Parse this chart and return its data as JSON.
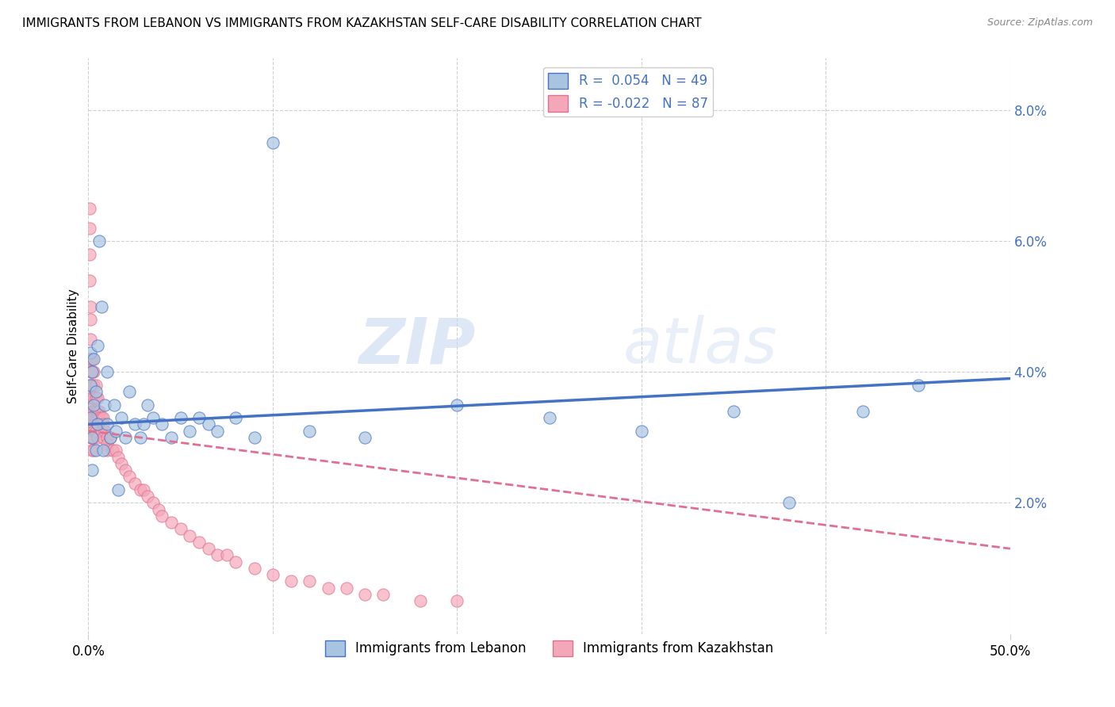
{
  "title": "IMMIGRANTS FROM LEBANON VS IMMIGRANTS FROM KAZAKHSTAN SELF-CARE DISABILITY CORRELATION CHART",
  "source": "Source: ZipAtlas.com",
  "ylabel": "Self-Care Disability",
  "xlim": [
    0.0,
    0.5
  ],
  "ylim": [
    0.0,
    0.088
  ],
  "yticks": [
    0.0,
    0.02,
    0.04,
    0.06,
    0.08
  ],
  "ytick_labels": [
    "",
    "2.0%",
    "4.0%",
    "6.0%",
    "8.0%"
  ],
  "color_lebanon": "#a8c4e0",
  "color_kazakhstan": "#f4a7b9",
  "color_lebanon_line": "#4472c4",
  "color_kazakhstan_line": "#e07090",
  "watermark_zip": "ZIP",
  "watermark_atlas": "atlas",
  "lebanon_x": [
    0.001,
    0.001,
    0.001,
    0.002,
    0.002,
    0.002,
    0.003,
    0.003,
    0.004,
    0.004,
    0.005,
    0.005,
    0.006,
    0.007,
    0.008,
    0.009,
    0.01,
    0.01,
    0.012,
    0.014,
    0.015,
    0.016,
    0.018,
    0.02,
    0.022,
    0.025,
    0.028,
    0.03,
    0.032,
    0.035,
    0.04,
    0.045,
    0.05,
    0.055,
    0.06,
    0.065,
    0.07,
    0.08,
    0.09,
    0.1,
    0.12,
    0.15,
    0.2,
    0.25,
    0.3,
    0.35,
    0.38,
    0.42,
    0.45
  ],
  "lebanon_y": [
    0.033,
    0.038,
    0.043,
    0.03,
    0.04,
    0.025,
    0.035,
    0.042,
    0.028,
    0.037,
    0.032,
    0.044,
    0.06,
    0.05,
    0.028,
    0.035,
    0.032,
    0.04,
    0.03,
    0.035,
    0.031,
    0.022,
    0.033,
    0.03,
    0.037,
    0.032,
    0.03,
    0.032,
    0.035,
    0.033,
    0.032,
    0.03,
    0.033,
    0.031,
    0.033,
    0.032,
    0.031,
    0.033,
    0.03,
    0.075,
    0.031,
    0.03,
    0.035,
    0.033,
    0.031,
    0.034,
    0.02,
    0.034,
    0.038
  ],
  "kazakhstan_x": [
    0.0005,
    0.0005,
    0.0005,
    0.0005,
    0.0008,
    0.0008,
    0.001,
    0.001,
    0.001,
    0.001,
    0.001,
    0.001,
    0.001,
    0.001,
    0.001,
    0.002,
    0.002,
    0.002,
    0.002,
    0.002,
    0.002,
    0.002,
    0.002,
    0.002,
    0.002,
    0.003,
    0.003,
    0.003,
    0.003,
    0.003,
    0.003,
    0.003,
    0.003,
    0.003,
    0.004,
    0.004,
    0.004,
    0.004,
    0.004,
    0.005,
    0.005,
    0.005,
    0.005,
    0.005,
    0.006,
    0.006,
    0.007,
    0.007,
    0.008,
    0.008,
    0.008,
    0.009,
    0.01,
    0.01,
    0.01,
    0.012,
    0.013,
    0.015,
    0.016,
    0.018,
    0.02,
    0.022,
    0.025,
    0.028,
    0.03,
    0.032,
    0.035,
    0.038,
    0.04,
    0.045,
    0.05,
    0.055,
    0.06,
    0.065,
    0.07,
    0.075,
    0.08,
    0.09,
    0.1,
    0.11,
    0.12,
    0.13,
    0.14,
    0.15,
    0.16,
    0.18,
    0.2
  ],
  "kazakhstan_y": [
    0.065,
    0.062,
    0.058,
    0.054,
    0.042,
    0.036,
    0.05,
    0.048,
    0.045,
    0.042,
    0.04,
    0.038,
    0.035,
    0.033,
    0.03,
    0.042,
    0.04,
    0.038,
    0.036,
    0.034,
    0.033,
    0.032,
    0.031,
    0.03,
    0.028,
    0.04,
    0.038,
    0.036,
    0.034,
    0.033,
    0.032,
    0.031,
    0.03,
    0.028,
    0.038,
    0.036,
    0.034,
    0.033,
    0.031,
    0.036,
    0.034,
    0.033,
    0.032,
    0.03,
    0.034,
    0.033,
    0.033,
    0.031,
    0.033,
    0.032,
    0.03,
    0.031,
    0.03,
    0.029,
    0.028,
    0.03,
    0.028,
    0.028,
    0.027,
    0.026,
    0.025,
    0.024,
    0.023,
    0.022,
    0.022,
    0.021,
    0.02,
    0.019,
    0.018,
    0.017,
    0.016,
    0.015,
    0.014,
    0.013,
    0.012,
    0.012,
    0.011,
    0.01,
    0.009,
    0.008,
    0.008,
    0.007,
    0.007,
    0.006,
    0.006,
    0.005,
    0.005
  ]
}
